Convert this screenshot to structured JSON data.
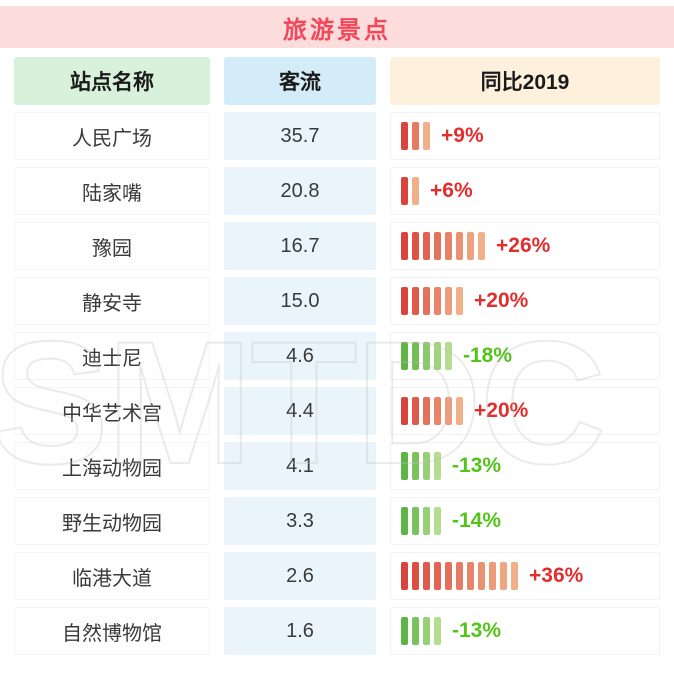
{
  "title": "旅游景点",
  "watermark": "SMTDC",
  "table": {
    "headers": [
      {
        "label": "站点名称"
      },
      {
        "label": "客流"
      },
      {
        "label": "同比2019"
      }
    ],
    "rows": [
      {
        "name": "人民广场",
        "flow": "35.7",
        "pct": "+9%",
        "dir": "up",
        "segments": 3
      },
      {
        "name": "陆家嘴",
        "flow": "20.8",
        "pct": "+6%",
        "dir": "up",
        "segments": 2
      },
      {
        "name": "豫园",
        "flow": "16.7",
        "pct": "+26%",
        "dir": "up",
        "segments": 8
      },
      {
        "name": "静安寺",
        "flow": "15.0",
        "pct": "+20%",
        "dir": "up",
        "segments": 6
      },
      {
        "name": "迪士尼",
        "flow": "4.6",
        "pct": "-18%",
        "dir": "down",
        "segments": 5
      },
      {
        "name": "中华艺术宫",
        "flow": "4.4",
        "pct": "+20%",
        "dir": "up",
        "segments": 6
      },
      {
        "name": "上海动物园",
        "flow": "4.1",
        "pct": "-13%",
        "dir": "down",
        "segments": 4
      },
      {
        "name": "野生动物园",
        "flow": "3.3",
        "pct": "-14%",
        "dir": "down",
        "segments": 4
      },
      {
        "name": "临港大道",
        "flow": "2.6",
        "pct": "+36%",
        "dir": "up",
        "segments": 11
      },
      {
        "name": "自然博物馆",
        "flow": "1.6",
        "pct": "-13%",
        "dir": "down",
        "segments": 4
      }
    ]
  },
  "colors": {
    "title_text": "#f2485c",
    "title_bg": "#fddcdc",
    "header_name_bg": "#d8f1da",
    "header_flow_bg": "#d4ecf7",
    "header_yoy_bg": "#fdf0dd",
    "flow_cell_bg": "#eaf5fb",
    "up_text": "#e12e2e",
    "down_text": "#52c41a",
    "up_bar_start": "#d9453a",
    "up_bar_end": "#f2b089",
    "down_bar_start": "#5cb544",
    "down_bar_end": "#b5dd8f"
  },
  "chart_data": {
    "type": "table",
    "title": "旅游景点",
    "columns": [
      "站点名称",
      "客流",
      "同比2019"
    ],
    "rows": [
      [
        "人民广场",
        35.7,
        "+9%"
      ],
      [
        "陆家嘴",
        20.8,
        "+6%"
      ],
      [
        "豫园",
        16.7,
        "+26%"
      ],
      [
        "静安寺",
        15.0,
        "+20%"
      ],
      [
        "迪士尼",
        4.6,
        "-18%"
      ],
      [
        "中华艺术宫",
        4.4,
        "+20%"
      ],
      [
        "上海动物园",
        4.1,
        "-13%"
      ],
      [
        "野生动物园",
        3.3,
        "-14%"
      ],
      [
        "临港大道",
        2.6,
        "+36%"
      ],
      [
        "自然博物馆",
        1.6,
        "-13%"
      ]
    ],
    "notes": "同比2019 column rendered as striped mini bar chart; positive values red/orange bars, negative values green bars; bar segment count proportional to |percent|"
  }
}
